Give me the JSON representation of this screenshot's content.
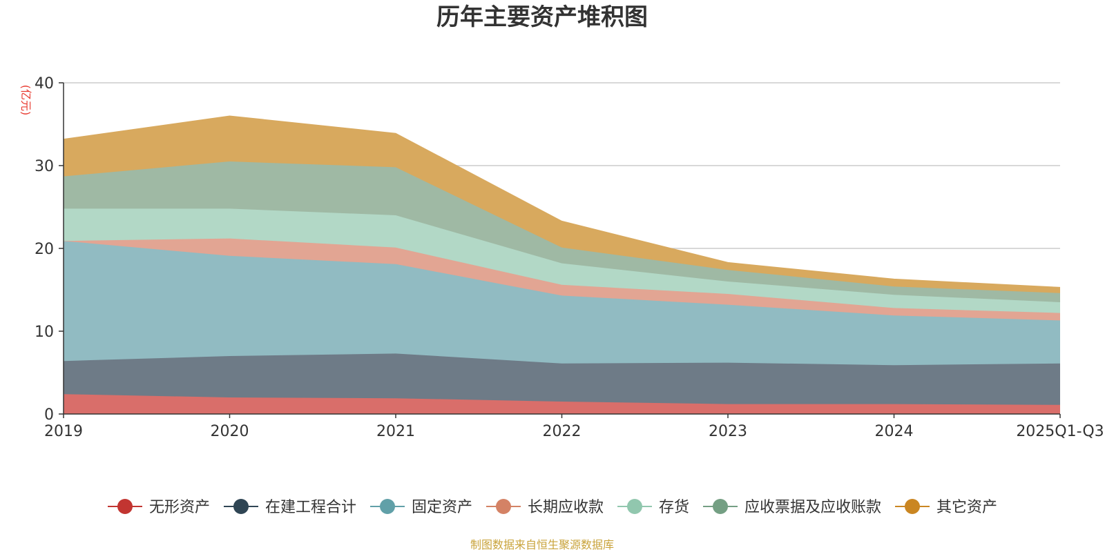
{
  "chart_data": {
    "type": "area",
    "stacked": true,
    "title": "历年主要资产堆积图",
    "ylabel": "(亿元)",
    "xlabel": "",
    "ylim": [
      0,
      40
    ],
    "yticks": [
      0,
      10,
      20,
      30,
      40
    ],
    "categories": [
      "2019",
      "2020",
      "2021",
      "2022",
      "2023",
      "2024",
      "2025Q1-Q3"
    ],
    "series": [
      {
        "name": "无形资产",
        "color": "#d96e6a",
        "legend_color": "#c23531",
        "values": [
          2.4,
          2.0,
          1.9,
          1.5,
          1.2,
          1.2,
          1.1
        ]
      },
      {
        "name": "在建工程合计",
        "color": "#6e7b87",
        "legend_color": "#2f4554",
        "values": [
          4.0,
          5.0,
          5.4,
          4.6,
          5.0,
          4.7,
          5.0
        ]
      },
      {
        "name": "固定资产",
        "color": "#91bbc2",
        "legend_color": "#61a0a8",
        "values": [
          14.5,
          12.1,
          10.8,
          8.2,
          7.0,
          6.0,
          5.2
        ]
      },
      {
        "name": "长期应收款",
        "color": "#e2a593",
        "legend_color": "#d48265",
        "values": [
          0.0,
          2.1,
          2.0,
          1.3,
          1.3,
          0.9,
          0.9
        ]
      },
      {
        "name": "存货",
        "color": "#b2d8c6",
        "legend_color": "#91c7ae",
        "values": [
          3.9,
          3.6,
          3.9,
          2.6,
          1.5,
          1.6,
          1.3
        ]
      },
      {
        "name": "应收票据及应收账款",
        "color": "#9fb9a4",
        "legend_color": "#749f83",
        "values": [
          3.9,
          5.7,
          5.8,
          1.9,
          1.4,
          1.0,
          1.1
        ]
      },
      {
        "name": "其它资产",
        "color": "#d8a95e",
        "legend_color": "#ca8622",
        "values": [
          4.5,
          5.5,
          4.1,
          3.2,
          0.9,
          0.9,
          0.7
        ]
      }
    ],
    "legend_position": "bottom",
    "grid": true
  },
  "footer": {
    "source": "制图数据来自恒生聚源数据库"
  }
}
